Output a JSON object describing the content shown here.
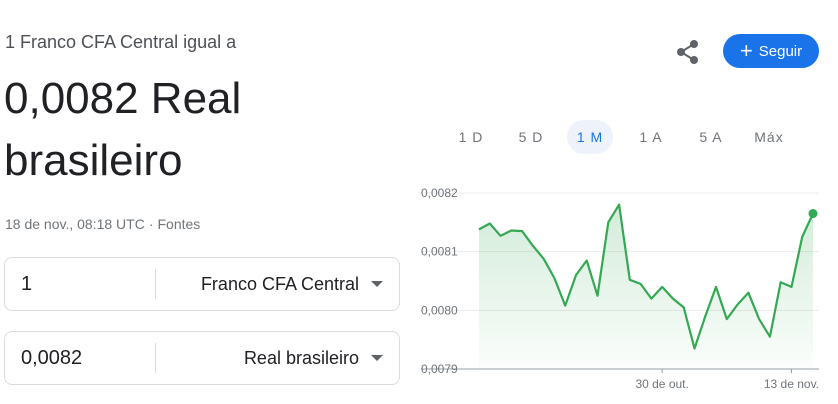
{
  "header": {
    "subtitle": "1 Franco CFA Central igual a",
    "value_line1": "0,0082 Real",
    "value_line2": "brasileiro",
    "timestamp": "18 de nov., 08:18 UTC",
    "separator": "·",
    "sources_link": "Fontes",
    "share_icon": "share-icon",
    "follow_label": "Seguir",
    "follow_icon": "plus-icon"
  },
  "converter": {
    "from": {
      "amount": "1",
      "currency": "Franco CFA Central"
    },
    "to": {
      "amount": "0,0082",
      "currency": "Real brasileiro"
    }
  },
  "tabs": [
    {
      "label": "1 D",
      "active": false
    },
    {
      "label": "5 D",
      "active": false
    },
    {
      "label": "1 M",
      "active": true
    },
    {
      "label": "1 A",
      "active": false
    },
    {
      "label": "5 A",
      "active": false
    },
    {
      "label": "Máx",
      "active": false
    }
  ],
  "colors": {
    "accent": "#1a73e8",
    "line": "#34a853"
  },
  "chart_data": {
    "type": "area",
    "y_ticks": [
      "0,0082",
      "0,0081",
      "0,0080",
      "0,0079"
    ],
    "x_ticks": [
      {
        "label": "30 de out.",
        "index": 17
      },
      {
        "label": "13 de nov.",
        "index": 29
      }
    ],
    "ylim": [
      0.0079,
      0.0082
    ],
    "grid": true,
    "values": [
      0.008138,
      0.008148,
      0.008127,
      0.008136,
      0.008135,
      0.00811,
      0.008088,
      0.008055,
      0.008008,
      0.00806,
      0.008085,
      0.008025,
      0.00815,
      0.00818,
      0.008052,
      0.008045,
      0.00802,
      0.00804,
      0.00802,
      0.008005,
      0.007935,
      0.00799,
      0.00804,
      0.007985,
      0.00801,
      0.00803,
      0.007985,
      0.007955,
      0.008048,
      0.00804,
      0.008125,
      0.008165
    ]
  }
}
